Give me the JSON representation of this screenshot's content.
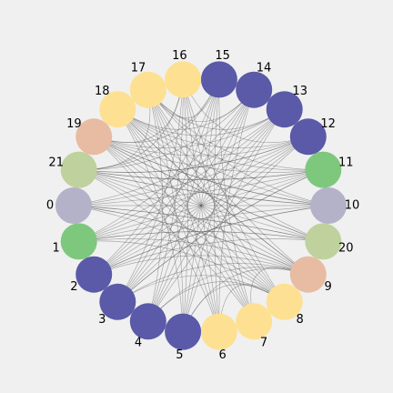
{
  "colors": {
    "background": "#f0f0f0",
    "edge": "#555555",
    "palette": {
      "navy": "#5a5aa8",
      "yellow": "#fde092",
      "green": "#7ec87e",
      "lavender": "#b4b2c9",
      "sage": "#bfd19d",
      "peach": "#e8bba3"
    }
  },
  "nodes": [
    {
      "id": "0",
      "label": "0",
      "color": "lavender"
    },
    {
      "id": "1",
      "label": "1",
      "color": "green"
    },
    {
      "id": "2",
      "label": "2",
      "color": "navy"
    },
    {
      "id": "3",
      "label": "3",
      "color": "navy"
    },
    {
      "id": "4",
      "label": "4",
      "color": "navy"
    },
    {
      "id": "5",
      "label": "5",
      "color": "navy"
    },
    {
      "id": "6",
      "label": "6",
      "color": "yellow"
    },
    {
      "id": "7",
      "label": "7",
      "color": "yellow"
    },
    {
      "id": "8",
      "label": "8",
      "color": "yellow"
    },
    {
      "id": "9",
      "label": "9",
      "color": "peach"
    },
    {
      "id": "20",
      "label": "20",
      "color": "sage"
    },
    {
      "id": "10",
      "label": "10",
      "color": "lavender"
    },
    {
      "id": "11",
      "label": "11",
      "color": "green"
    },
    {
      "id": "12",
      "label": "12",
      "color": "navy"
    },
    {
      "id": "13",
      "label": "13",
      "color": "navy"
    },
    {
      "id": "14",
      "label": "14",
      "color": "navy"
    },
    {
      "id": "15",
      "label": "15",
      "color": "navy"
    },
    {
      "id": "16",
      "label": "16",
      "color": "yellow"
    },
    {
      "id": "17",
      "label": "17",
      "color": "yellow"
    },
    {
      "id": "18",
      "label": "18",
      "color": "yellow"
    },
    {
      "id": "19",
      "label": "19",
      "color": "peach"
    },
    {
      "id": "21",
      "label": "21",
      "color": "sage"
    }
  ],
  "edges": [
    [
      "0",
      "10"
    ],
    [
      "0",
      "11"
    ],
    [
      "0",
      "12"
    ],
    [
      "0",
      "13"
    ],
    [
      "1",
      "11"
    ],
    [
      "1",
      "12"
    ],
    [
      "1",
      "13"
    ],
    [
      "1",
      "14"
    ],
    [
      "1",
      "9"
    ],
    [
      "1",
      "8"
    ],
    [
      "2",
      "12"
    ],
    [
      "2",
      "13"
    ],
    [
      "2",
      "14"
    ],
    [
      "2",
      "15"
    ],
    [
      "2",
      "9"
    ],
    [
      "2",
      "10"
    ],
    [
      "3",
      "13"
    ],
    [
      "3",
      "14"
    ],
    [
      "3",
      "15"
    ],
    [
      "3",
      "16"
    ],
    [
      "3",
      "12"
    ],
    [
      "3",
      "11"
    ],
    [
      "4",
      "14"
    ],
    [
      "4",
      "15"
    ],
    [
      "4",
      "16"
    ],
    [
      "4",
      "17"
    ],
    [
      "4",
      "12"
    ],
    [
      "4",
      "13"
    ],
    [
      "5",
      "15"
    ],
    [
      "5",
      "16"
    ],
    [
      "5",
      "17"
    ],
    [
      "5",
      "18"
    ],
    [
      "5",
      "13"
    ],
    [
      "5",
      "14"
    ],
    [
      "6",
      "16"
    ],
    [
      "6",
      "17"
    ],
    [
      "6",
      "18"
    ],
    [
      "6",
      "19"
    ],
    [
      "6",
      "14"
    ],
    [
      "6",
      "15"
    ],
    [
      "7",
      "17"
    ],
    [
      "7",
      "18"
    ],
    [
      "7",
      "19"
    ],
    [
      "7",
      "21"
    ],
    [
      "7",
      "15"
    ],
    [
      "7",
      "16"
    ],
    [
      "8",
      "18"
    ],
    [
      "8",
      "19"
    ],
    [
      "8",
      "21"
    ],
    [
      "8",
      "0"
    ],
    [
      "8",
      "16"
    ],
    [
      "8",
      "17"
    ],
    [
      "9",
      "19"
    ],
    [
      "9",
      "21"
    ],
    [
      "9",
      "0"
    ],
    [
      "9",
      "17"
    ],
    [
      "9",
      "18"
    ],
    [
      "20",
      "21"
    ],
    [
      "20",
      "0"
    ],
    [
      "20",
      "1"
    ],
    [
      "20",
      "18"
    ],
    [
      "20",
      "19"
    ],
    [
      "10",
      "21"
    ],
    [
      "10",
      "1"
    ],
    [
      "10",
      "2"
    ],
    [
      "10",
      "19"
    ],
    [
      "11",
      "2"
    ],
    [
      "11",
      "3"
    ],
    [
      "11",
      "21"
    ],
    [
      "12",
      "19"
    ],
    [
      "12",
      "18"
    ],
    [
      "12",
      "21"
    ],
    [
      "13",
      "17"
    ],
    [
      "13",
      "18"
    ],
    [
      "13",
      "19"
    ],
    [
      "14",
      "18"
    ],
    [
      "14",
      "21"
    ],
    [
      "14",
      "17"
    ],
    [
      "15",
      "19"
    ],
    [
      "15",
      "17"
    ],
    [
      "15",
      "21"
    ],
    [
      "16",
      "19"
    ],
    [
      "16",
      "21"
    ],
    [
      "16",
      "12"
    ],
    [
      "17",
      "21"
    ],
    [
      "17",
      "11"
    ],
    [
      "17",
      "10"
    ],
    [
      "18",
      "11"
    ],
    [
      "18",
      "10"
    ],
    [
      "18",
      "9"
    ],
    [
      "19",
      "11"
    ],
    [
      "19",
      "10"
    ],
    [
      "19",
      "20"
    ],
    [
      "21",
      "12"
    ],
    [
      "21",
      "11"
    ],
    [
      "21",
      "10"
    ],
    [
      "0",
      "20"
    ],
    [
      "0",
      "9"
    ],
    [
      "1",
      "20"
    ],
    [
      "2",
      "20"
    ],
    [
      "3",
      "9"
    ],
    [
      "4",
      "9"
    ],
    [
      "5",
      "8"
    ],
    [
      "5",
      "9"
    ],
    [
      "6",
      "8"
    ],
    [
      "7",
      "9"
    ],
    [
      "3",
      "8"
    ],
    [
      "4",
      "8"
    ]
  ]
}
